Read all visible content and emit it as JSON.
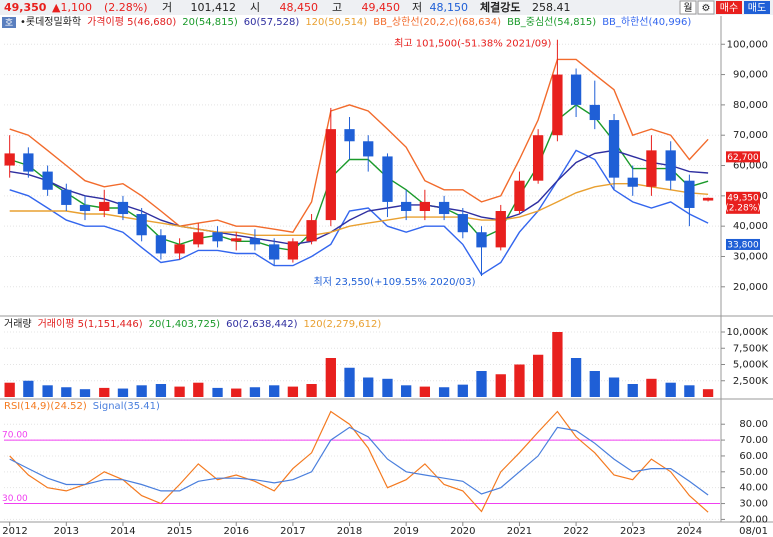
{
  "header": {
    "price": "49,350",
    "change": "▲1,100",
    "rate": "(2.28%)",
    "volume_label": "거",
    "volume": "101,412",
    "open_label": "시",
    "open": "48,450",
    "high_label": "고",
    "high": "49,450",
    "low_label": "저",
    "low": "48,150",
    "strength_label": "체결강도",
    "strength": "258.41",
    "buttons": [
      "월",
      "⚙",
      "매수",
      "매도"
    ],
    "tag": "호"
  },
  "chart_data": [
    {
      "type": "candlestick",
      "up_color": "#e8201e",
      "down_color": "#1f5fd6",
      "legend": [
        {
          "text": "•롯데정밀화학",
          "color": "#222222"
        },
        {
          "text": "가격이평 5(46,680)",
          "color": "#e02020"
        },
        {
          "text": "20(54,815)",
          "color": "#1a9a2a"
        },
        {
          "text": "60(57,528)",
          "color": "#2f2fa0"
        },
        {
          "text": "120(50,514)",
          "color": "#e9a030"
        },
        {
          "text": "BB_상한선(20,2,c)(68,634)",
          "color": "#f26b2c"
        },
        {
          "text": "BB_중심선(54,815)",
          "color": "#1a9a2a"
        },
        {
          "text": "BB_하한선(40,996)",
          "color": "#3366ee"
        }
      ],
      "x": [
        2012,
        2012.33,
        2012.67,
        2013,
        2013.33,
        2013.67,
        2014,
        2014.33,
        2014.67,
        2015,
        2015.33,
        2015.67,
        2016,
        2016.33,
        2016.67,
        2017,
        2017.33,
        2017.67,
        2018,
        2018.33,
        2018.67,
        2019,
        2019.33,
        2019.67,
        2020,
        2020.33,
        2020.67,
        2021,
        2021.33,
        2021.67,
        2022,
        2022.33,
        2022.67,
        2023,
        2023.33,
        2023.67,
        2024,
        2024.33
      ],
      "open": [
        60000,
        64000,
        58000,
        52000,
        47000,
        45000,
        48000,
        44000,
        37000,
        31000,
        34000,
        38000,
        35000,
        36000,
        34000,
        29000,
        35000,
        42000,
        72000,
        68000,
        63000,
        48000,
        45000,
        48000,
        44000,
        38000,
        33000,
        45000,
        55000,
        70000,
        90000,
        80000,
        75000,
        56000,
        53000,
        65000,
        55000,
        48450
      ],
      "high": [
        70000,
        66000,
        60000,
        54000,
        50000,
        52000,
        50000,
        46000,
        39000,
        36000,
        41000,
        40000,
        38000,
        39000,
        36000,
        36000,
        44000,
        79000,
        76000,
        70000,
        64000,
        52000,
        52000,
        50000,
        46000,
        40000,
        47000,
        58000,
        72000,
        101500,
        92000,
        88000,
        77000,
        60000,
        70000,
        68000,
        57000,
        49450
      ],
      "low": [
        56000,
        56000,
        50000,
        45000,
        42000,
        43000,
        42000,
        35000,
        29000,
        29000,
        33000,
        33000,
        32000,
        32000,
        27000,
        28000,
        34000,
        40000,
        62000,
        58000,
        43000,
        42000,
        42000,
        42000,
        36000,
        23550,
        32000,
        44000,
        54000,
        68000,
        76000,
        72000,
        52000,
        50000,
        50000,
        52000,
        40000,
        48150
      ],
      "close": [
        64000,
        58000,
        52000,
        47000,
        45000,
        48000,
        44000,
        37000,
        31000,
        34000,
        38000,
        35000,
        36000,
        34000,
        29000,
        35000,
        42000,
        72000,
        68000,
        63000,
        48000,
        45000,
        48000,
        44000,
        38000,
        33000,
        45000,
        55000,
        70000,
        90000,
        80000,
        75000,
        56000,
        53000,
        65000,
        55000,
        46000,
        49350
      ],
      "series": [
        {
          "color": "#f26b2c",
          "values": [
            72000,
            70000,
            65000,
            60000,
            55000,
            53000,
            54000,
            50000,
            45000,
            40000,
            41000,
            42000,
            40000,
            40000,
            39000,
            38000,
            48000,
            78000,
            80000,
            78000,
            72000,
            66000,
            55000,
            52000,
            52000,
            48000,
            50000,
            62000,
            75000,
            95000,
            95000,
            90000,
            85000,
            70000,
            72000,
            70000,
            62000,
            68634
          ]
        },
        {
          "color": "#1a9a2a",
          "values": [
            62000,
            60000,
            55000,
            51000,
            47000,
            46000,
            46000,
            42000,
            36000,
            34000,
            36000,
            37000,
            35000,
            35000,
            33000,
            32000,
            38000,
            56000,
            62000,
            62000,
            56000,
            52000,
            47000,
            46000,
            43000,
            36000,
            39000,
            50000,
            60000,
            75000,
            80000,
            76000,
            68000,
            59000,
            59000,
            59000,
            53000,
            54815
          ]
        },
        {
          "color": "#3366ee",
          "values": [
            52000,
            50000,
            46000,
            42000,
            40000,
            40000,
            38000,
            33000,
            28000,
            29000,
            32000,
            32000,
            31000,
            31000,
            27000,
            27000,
            30000,
            34000,
            45000,
            46000,
            40000,
            38000,
            40000,
            40000,
            34000,
            24000,
            28000,
            38000,
            45000,
            55000,
            65000,
            62000,
            52000,
            48000,
            46000,
            48000,
            44000,
            40996
          ]
        },
        {
          "color": "#2f2fa0",
          "values": [
            58000,
            57000,
            55000,
            52000,
            50000,
            49000,
            47000,
            45000,
            42000,
            40000,
            39000,
            38000,
            37000,
            36000,
            35000,
            34000,
            35000,
            38000,
            42000,
            45000,
            46000,
            47000,
            47000,
            46000,
            45000,
            43000,
            42000,
            44000,
            48000,
            55000,
            61000,
            64000,
            65000,
            63000,
            61000,
            60000,
            58000,
            57528
          ]
        },
        {
          "color": "#e9a030",
          "values": [
            45000,
            45000,
            45000,
            45000,
            44000,
            44000,
            43000,
            42000,
            41000,
            40000,
            39000,
            38000,
            38000,
            37000,
            37000,
            37000,
            37000,
            38000,
            40000,
            41000,
            42000,
            43000,
            43000,
            43000,
            43000,
            42000,
            42000,
            43000,
            45000,
            48000,
            51000,
            53000,
            54000,
            54000,
            53000,
            52000,
            51000,
            50514
          ]
        }
      ],
      "xlim": [
        2011.9,
        2024.47
      ],
      "ylim": [
        10700,
        104700
      ],
      "yticks": [
        {
          "value": 20000,
          "label": "20,000"
        },
        {
          "value": 30000,
          "label": "30,000"
        },
        {
          "value": 40000,
          "label": "40,000"
        },
        {
          "value": 50000,
          "label": "50,000"
        },
        {
          "value": 60000,
          "label": "60,000"
        },
        {
          "value": 70000,
          "label": "70,000"
        },
        {
          "value": 80000,
          "label": "80,000"
        },
        {
          "value": 90000,
          "label": "90,000"
        },
        {
          "value": 100000,
          "label": "100,000"
        }
      ],
      "annotations": [
        {
          "text": "최고 101,500(-51.38% 2021/09)",
          "x": 2021.67,
          "y": 101500,
          "color": "#e8201e"
        },
        {
          "text": "최저 23,550(+109.55% 2020/03)",
          "x": 2020.33,
          "y": 23550,
          "color": "#1f5fd6"
        }
      ],
      "price_labels": [
        {
          "value": 62700,
          "label": "62,700",
          "color": "#e8201e"
        },
        {
          "value": 49350,
          "label": "49,350",
          "sublabel": "(2.28%)",
          "color": "#e8201e"
        },
        {
          "value": 33800,
          "label": "33,800",
          "color": "#1f5fd6"
        }
      ]
    },
    {
      "type": "bar",
      "up_color": "#e8201e",
      "down_color": "#1f5fd6",
      "legend": [
        {
          "text": "거래량",
          "color": "#222222"
        },
        {
          "text": "거래이평 5(1,151,446)",
          "color": "#e02020"
        },
        {
          "text": "20(1,403,725)",
          "color": "#1a9a2a"
        },
        {
          "text": "60(2,638,442)",
          "color": "#2f2fa0"
        },
        {
          "text": "120(2,279,612)",
          "color": "#e9a030"
        }
      ],
      "x": [
        2012,
        2012.33,
        2012.67,
        2013,
        2013.33,
        2013.67,
        2014,
        2014.33,
        2014.67,
        2015,
        2015.33,
        2015.67,
        2016,
        2016.33,
        2016.67,
        2017,
        2017.33,
        2017.67,
        2018,
        2018.33,
        2018.67,
        2019,
        2019.33,
        2019.67,
        2020,
        2020.33,
        2020.67,
        2021,
        2021.33,
        2021.67,
        2022,
        2022.33,
        2022.67,
        2023,
        2023.33,
        2023.67,
        2024,
        2024.33
      ],
      "values": [
        2200000,
        2500000,
        1800000,
        1500000,
        1200000,
        1400000,
        1300000,
        1800000,
        2000000,
        1600000,
        2200000,
        1400000,
        1300000,
        1500000,
        1800000,
        1600000,
        2000000,
        6000000,
        4500000,
        3000000,
        2800000,
        1800000,
        1600000,
        1500000,
        1900000,
        4000000,
        3500000,
        5000000,
        6500000,
        10000000,
        6000000,
        4000000,
        3000000,
        2000000,
        2800000,
        2200000,
        1800000,
        1200000
      ],
      "xlim": [
        2011.9,
        2024.47
      ],
      "ylim": [
        0,
        12000000
      ],
      "yticks": [
        {
          "value": 2500000,
          "label": "2,500K"
        },
        {
          "value": 5000000,
          "label": "5,000K"
        },
        {
          "value": 7500000,
          "label": "7,500K"
        },
        {
          "value": 10000000,
          "label": "10,000K"
        }
      ]
    },
    {
      "type": "line",
      "legend": [
        {
          "text": "RSI(14,9)(24.52)",
          "color": "#f47a20"
        },
        {
          "text": "Signal(35.41)",
          "color": "#4a7fdd"
        }
      ],
      "x": [
        2012,
        2012.33,
        2012.67,
        2013,
        2013.33,
        2013.67,
        2014,
        2014.33,
        2014.67,
        2015,
        2015.33,
        2015.67,
        2016,
        2016.33,
        2016.67,
        2017,
        2017.33,
        2017.67,
        2018,
        2018.33,
        2018.67,
        2019,
        2019.33,
        2019.67,
        2020,
        2020.33,
        2020.67,
        2021,
        2021.33,
        2021.67,
        2022,
        2022.33,
        2022.67,
        2023,
        2023.33,
        2023.67,
        2024,
        2024.33
      ],
      "series": [
        {
          "color": "#f47a20",
          "values": [
            60,
            48,
            40,
            38,
            42,
            50,
            45,
            35,
            30,
            42,
            55,
            45,
            48,
            44,
            38,
            52,
            62,
            88,
            80,
            65,
            40,
            45,
            55,
            42,
            38,
            25,
            50,
            62,
            75,
            88,
            72,
            62,
            48,
            45,
            58,
            50,
            35,
            24.52
          ]
        },
        {
          "color": "#4a7fdd",
          "values": [
            58,
            52,
            46,
            42,
            42,
            45,
            45,
            42,
            38,
            38,
            44,
            46,
            46,
            45,
            43,
            45,
            50,
            70,
            78,
            72,
            58,
            50,
            48,
            46,
            44,
            36,
            40,
            50,
            60,
            78,
            76,
            68,
            58,
            50,
            52,
            52,
            44,
            35.41
          ]
        }
      ],
      "ref_lines": [
        {
          "value": 70,
          "label": "70.00"
        },
        {
          "value": 30,
          "label": "30.00"
        }
      ],
      "ref_color": "#f040f0",
      "xlim": [
        2011.9,
        2024.47
      ],
      "ylim": [
        19,
        94
      ],
      "yticks": [
        {
          "value": 20,
          "label": "20.00"
        },
        {
          "value": 30,
          "label": "30.00"
        },
        {
          "value": 40,
          "label": "40.00"
        },
        {
          "value": 50,
          "label": "50.00"
        },
        {
          "value": 60,
          "label": "60.00"
        },
        {
          "value": 70,
          "label": "70.00"
        },
        {
          "value": 80,
          "label": "80.00"
        }
      ],
      "xticks": [
        2012,
        2013,
        2014,
        2015,
        2016,
        2017,
        2018,
        2019,
        2020,
        2021,
        2022,
        2023,
        2024
      ],
      "x_end_label": "08/01"
    }
  ]
}
